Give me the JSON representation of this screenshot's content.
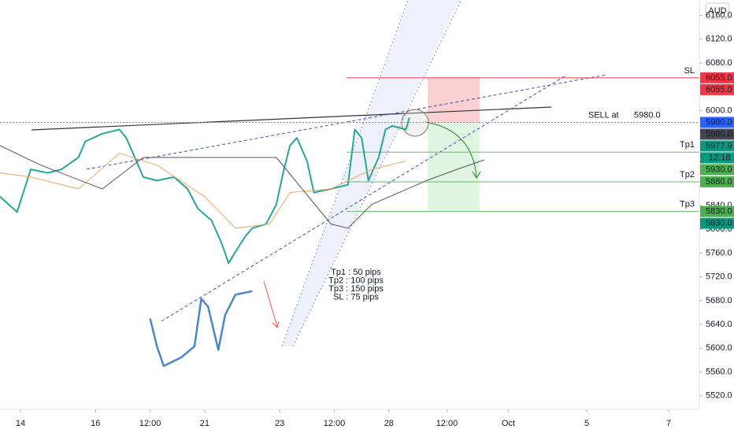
{
  "chart_data": {
    "type": "line",
    "currency_button": "AUD",
    "xlim": [
      0,
      205
    ],
    "ylim": [
      5497,
      6186
    ],
    "xticks": [
      {
        "value": 6,
        "label": "14"
      },
      {
        "value": 28,
        "label": "16"
      },
      {
        "value": 44,
        "label": "12:00"
      },
      {
        "value": 60,
        "label": "21"
      },
      {
        "value": 82,
        "label": "23"
      },
      {
        "value": 98,
        "label": "12:00"
      },
      {
        "value": 114,
        "label": "28"
      },
      {
        "value": 131,
        "label": "12:00"
      },
      {
        "value": 149,
        "label": "Oct"
      },
      {
        "value": 172,
        "label": "5"
      },
      {
        "value": 196,
        "label": "7"
      }
    ],
    "yticks": [
      {
        "value": 6160,
        "label": "6160.0"
      },
      {
        "value": 6120,
        "label": "6120.0"
      },
      {
        "value": 6080,
        "label": "6080.0"
      },
      {
        "value": 6000,
        "label": "6000.0"
      },
      {
        "value": 5840,
        "label": "5840.0"
      },
      {
        "value": 5800,
        "label": "5800.0"
      },
      {
        "value": 5760,
        "label": "5760.0"
      },
      {
        "value": 5720,
        "label": "5720.0"
      },
      {
        "value": 5680,
        "label": "5680.0"
      },
      {
        "value": 5640,
        "label": "5640.0"
      },
      {
        "value": 5600,
        "label": "5600.0"
      },
      {
        "value": 5560,
        "label": "5560.0"
      },
      {
        "value": 5520,
        "label": "5520.0"
      }
    ],
    "series": [
      {
        "color": "#26a69a",
        "width": 2,
        "x": [
          0,
          5,
          9,
          14,
          18,
          23,
          25,
          30,
          35,
          37,
          39,
          42,
          46,
          51,
          55,
          58,
          62,
          65,
          67,
          69,
          72,
          74,
          78,
          81,
          83,
          85,
          87,
          90,
          92,
          97,
          102,
          104,
          106,
          108,
          111,
          113,
          115,
          119,
          120
        ],
        "values": [
          5855,
          5829,
          5901,
          5895,
          5901,
          5921,
          5948,
          5961,
          5968,
          5954,
          5928,
          5888,
          5882,
          5888,
          5868,
          5835,
          5815,
          5776,
          5743,
          5762,
          5789,
          5802,
          5809,
          5842,
          5895,
          5941,
          5954,
          5915,
          5862,
          5868,
          5875,
          5968,
          5954,
          5882,
          5921,
          5968,
          5974,
          5968,
          5988
        ]
      },
      {
        "color": "#4a86c8",
        "width": 2.5,
        "x": [
          44,
          46,
          48,
          53,
          57,
          59,
          61,
          64,
          66,
          69,
          74
        ],
        "values": [
          5650,
          5603,
          5570,
          5584,
          5603,
          5683,
          5670,
          5597,
          5656,
          5690,
          5696
        ]
      },
      {
        "color": "#f4a460",
        "width": 1,
        "x": [
          0,
          9,
          23,
          35,
          46,
          60,
          69,
          79,
          85,
          97,
          109,
          119
        ],
        "values": [
          5895,
          5888,
          5868,
          5928,
          5908,
          5855,
          5802,
          5809,
          5862,
          5868,
          5901,
          5915
        ]
      },
      {
        "color": "#555555",
        "width": 1,
        "x": [
          0,
          12,
          30,
          42,
          81,
          97,
          102,
          109,
          125,
          134,
          142
        ],
        "values": [
          5941,
          5908,
          5868,
          5921,
          5921,
          5809,
          5802,
          5842,
          5882,
          5901,
          5917
        ]
      }
    ],
    "levels": [
      {
        "name": "SL",
        "value": 6055,
        "color": "#f23645"
      },
      {
        "name": "Tp1",
        "value": 5930,
        "color": "#66bb6a"
      },
      {
        "name": "Tp2",
        "value": 5880,
        "color": "#66bb6a"
      },
      {
        "name": "Tp3",
        "value": 5830,
        "color": "#66bb6a"
      }
    ],
    "entry": {
      "text": "SELL at",
      "value": 5980,
      "label": "5980.0",
      "color": "#c2185b"
    },
    "price_labels": [
      {
        "value": 6055,
        "label": "6055.0",
        "color": "#f23645"
      },
      {
        "value": 6055,
        "label": "6055.0",
        "color": "#f23645"
      },
      {
        "value": 5980,
        "label": "5980.0",
        "color": "#2962ff"
      },
      {
        "value": 5980,
        "label": "5980.0",
        "color": "#434651"
      },
      {
        "value": 5977.9,
        "label": "5977.9",
        "color": "#089981"
      },
      {
        "value": 5930,
        "label": "5930.0",
        "color": "#4caf50"
      },
      {
        "value": 5880,
        "label": "5880.0",
        "color": "#4caf50"
      },
      {
        "value": 5830,
        "label": "5830.0",
        "color": "#4caf50"
      },
      {
        "value": 5830,
        "label": "5830.0",
        "color": "#089981"
      }
    ],
    "countdown": "12:18",
    "notes": [
      "Tp1 : 50 pips",
      "Tp2 : 100 pips",
      "Tp3 : 150 pips",
      "SL : 75 pips"
    ]
  }
}
